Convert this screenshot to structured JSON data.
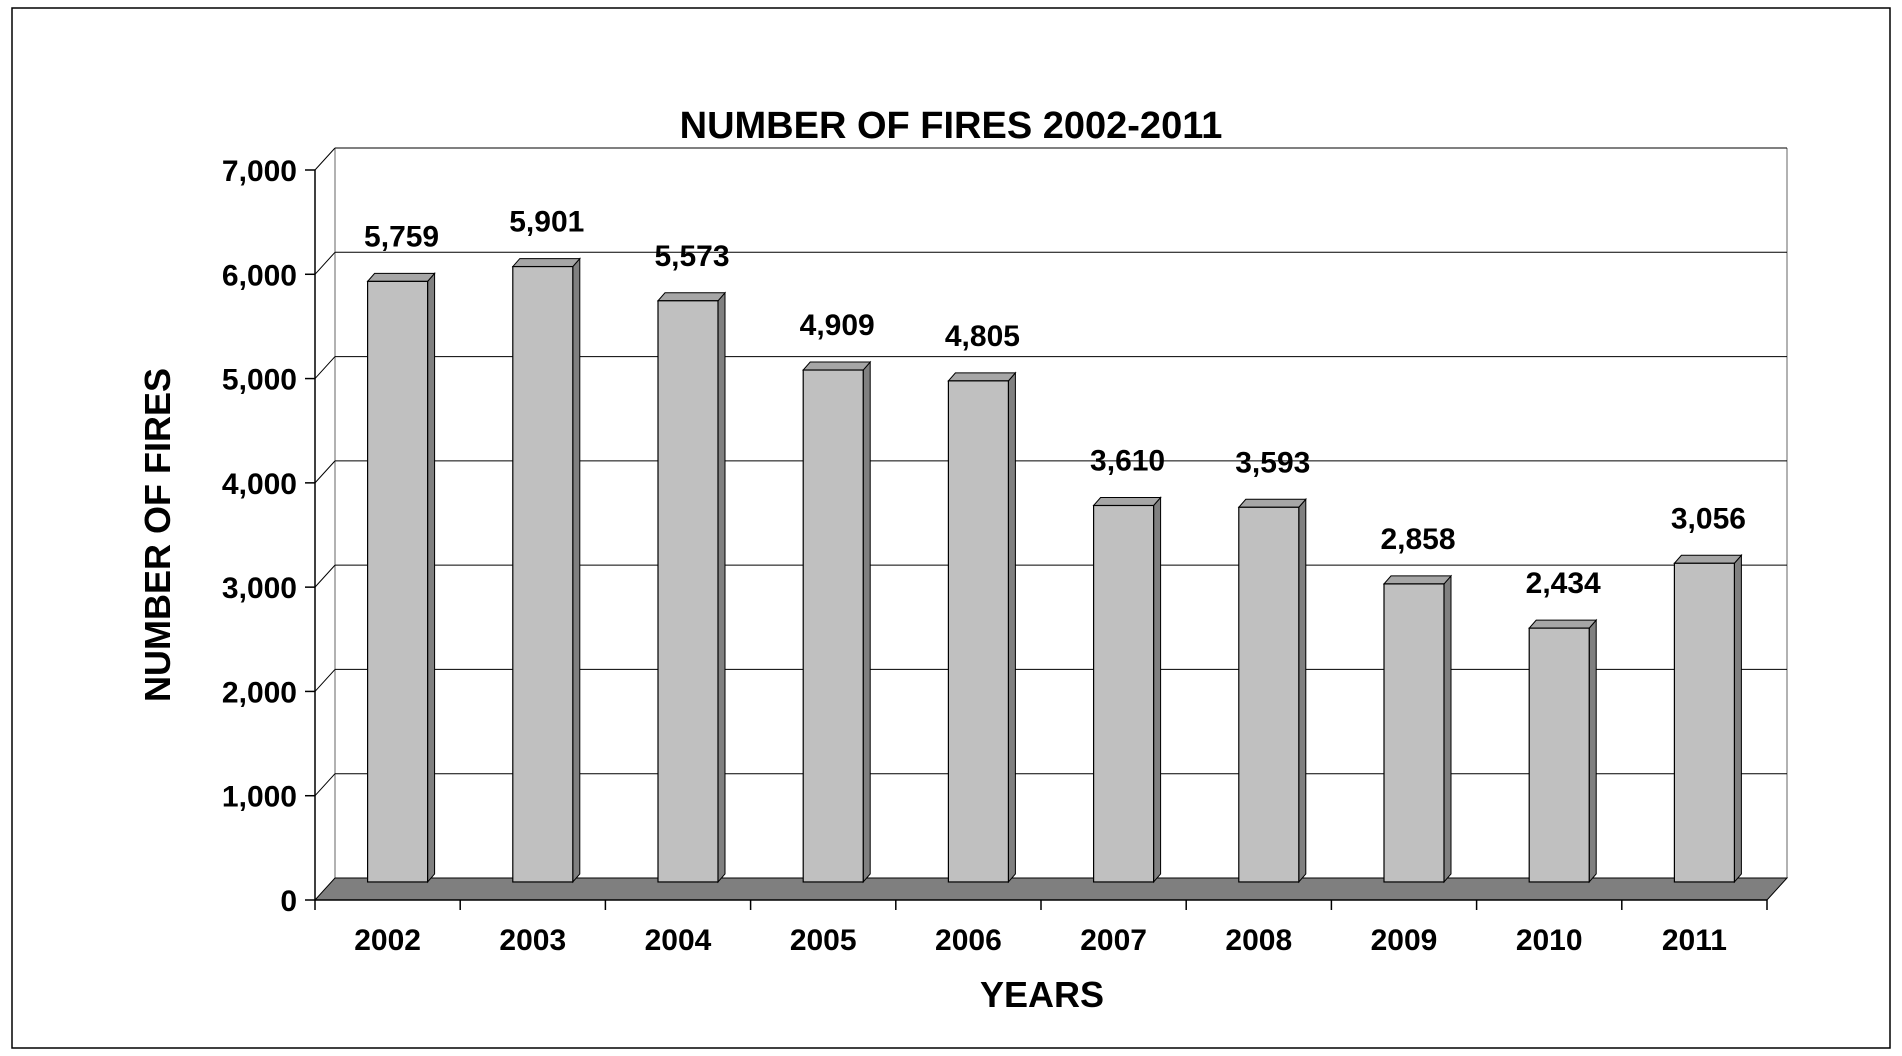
{
  "chart_data": {
    "type": "bar",
    "title": "NUMBER OF FIRES 2002-2011",
    "xlabel": "YEARS",
    "ylabel": "NUMBER OF FIRES",
    "categories": [
      "2002",
      "2003",
      "2004",
      "2005",
      "2006",
      "2007",
      "2008",
      "2009",
      "2010",
      "2011"
    ],
    "values": [
      5759,
      5901,
      5573,
      4909,
      4805,
      3610,
      3593,
      2858,
      2434,
      3056
    ],
    "value_labels": [
      "5,759",
      "5,901",
      "5,573",
      "4,909",
      "4,805",
      "3,610",
      "3,593",
      "2,858",
      "2,434",
      "3,056"
    ],
    "ylim": [
      0,
      7000
    ],
    "yticks": [
      0,
      1000,
      2000,
      3000,
      4000,
      5000,
      6000,
      7000
    ],
    "ytick_labels": [
      "0",
      "1,000",
      "2,000",
      "3,000",
      "4,000",
      "5,000",
      "6,000",
      "7,000"
    ],
    "grid": true,
    "legend": "none",
    "style": "3d",
    "colors": {
      "bar_front": "#c0c0c0",
      "bar_side": "#808080",
      "bar_top": "#a6a6a6",
      "floor": "#7f7f7f",
      "grid": "#000000"
    }
  }
}
